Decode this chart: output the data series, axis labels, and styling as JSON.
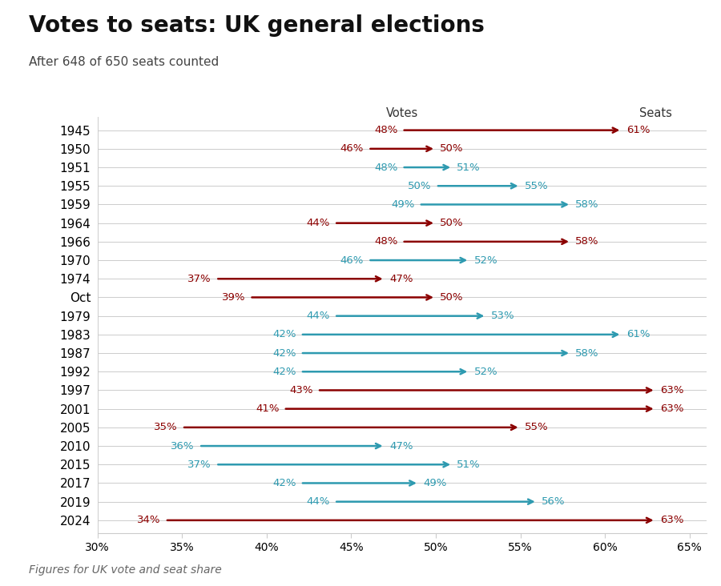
{
  "title": "Votes to seats: UK general elections",
  "subtitle": "After 648 of 650 seats counted",
  "footnote": "Figures for UK vote and seat share",
  "col_label_votes": "Votes",
  "col_label_seats": "Seats",
  "xlim": [
    30,
    66
  ],
  "xticks": [
    30,
    35,
    40,
    45,
    50,
    55,
    60,
    65
  ],
  "xtick_labels": [
    "30%",
    "35%",
    "40%",
    "45%",
    "50%",
    "55%",
    "60%",
    "65%"
  ],
  "elections": [
    {
      "year": "1945",
      "votes": 48,
      "seats": 61,
      "color": "#8B0000"
    },
    {
      "year": "1950",
      "votes": 46,
      "seats": 50,
      "color": "#8B0000"
    },
    {
      "year": "1951",
      "votes": 48,
      "seats": 51,
      "color": "#2E9AB0"
    },
    {
      "year": "1955",
      "votes": 50,
      "seats": 55,
      "color": "#2E9AB0"
    },
    {
      "year": "1959",
      "votes": 49,
      "seats": 58,
      "color": "#2E9AB0"
    },
    {
      "year": "1964",
      "votes": 44,
      "seats": 50,
      "color": "#8B0000"
    },
    {
      "year": "1966",
      "votes": 48,
      "seats": 58,
      "color": "#8B0000"
    },
    {
      "year": "1970",
      "votes": 46,
      "seats": 52,
      "color": "#2E9AB0"
    },
    {
      "year": "1974",
      "votes": 37,
      "seats": 47,
      "color": "#8B0000"
    },
    {
      "year": "Oct",
      "votes": 39,
      "seats": 50,
      "color": "#8B0000"
    },
    {
      "year": "1979",
      "votes": 44,
      "seats": 53,
      "color": "#2E9AB0"
    },
    {
      "year": "1983",
      "votes": 42,
      "seats": 61,
      "color": "#2E9AB0"
    },
    {
      "year": "1987",
      "votes": 42,
      "seats": 58,
      "color": "#2E9AB0"
    },
    {
      "year": "1992",
      "votes": 42,
      "seats": 52,
      "color": "#2E9AB0"
    },
    {
      "year": "1997",
      "votes": 43,
      "seats": 63,
      "color": "#8B0000"
    },
    {
      "year": "2001",
      "votes": 41,
      "seats": 63,
      "color": "#8B0000"
    },
    {
      "year": "2005",
      "votes": 35,
      "seats": 55,
      "color": "#8B0000"
    },
    {
      "year": "2010",
      "votes": 36,
      "seats": 47,
      "color": "#2E9AB0"
    },
    {
      "year": "2015",
      "votes": 37,
      "seats": 51,
      "color": "#2E9AB0"
    },
    {
      "year": "2017",
      "votes": 42,
      "seats": 49,
      "color": "#2E9AB0"
    },
    {
      "year": "2019",
      "votes": 44,
      "seats": 56,
      "color": "#2E9AB0"
    },
    {
      "year": "2024",
      "votes": 34,
      "seats": 63,
      "color": "#8B0000"
    }
  ],
  "background_color": "#FFFFFF",
  "grid_color": "#CCCCCC",
  "title_fontsize": 20,
  "subtitle_fontsize": 11,
  "label_fontsize": 9.5,
  "footnote_fontsize": 10,
  "year_fontsize": 11
}
